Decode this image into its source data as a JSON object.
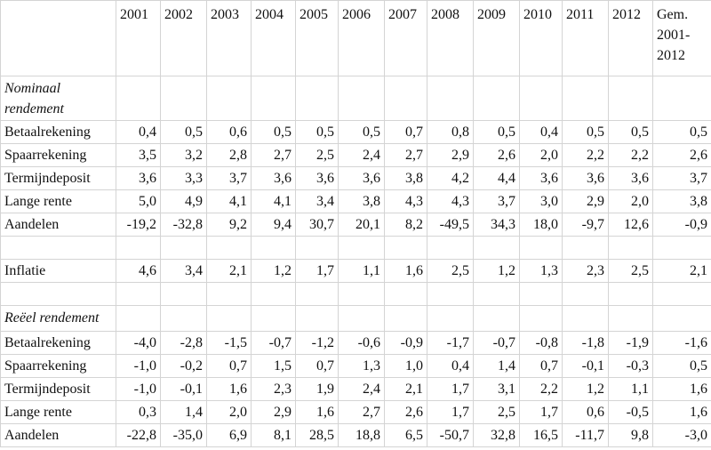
{
  "table": {
    "columns": [
      "2001",
      "2002",
      "2003",
      "2004",
      "2005",
      "2006",
      "2007",
      "2008",
      "2009",
      "2010",
      "2011",
      "2012",
      "Gem. 2001-2012"
    ],
    "sections": [
      {
        "title": "Nominaal rendement",
        "rows": [
          {
            "label": "Betaalrekening",
            "cells": [
              "0,4",
              "0,5",
              "0,6",
              "0,5",
              "0,5",
              "0,5",
              "0,7",
              "0,8",
              "0,5",
              "0,4",
              "0,5",
              "0,5",
              "0,5"
            ]
          },
          {
            "label": "Spaarrekening",
            "cells": [
              "3,5",
              "3,2",
              "2,8",
              "2,7",
              "2,5",
              "2,4",
              "2,7",
              "2,9",
              "2,6",
              "2,0",
              "2,2",
              "2,2",
              "2,6"
            ]
          },
          {
            "label": "Termijndeposit",
            "cells": [
              "3,6",
              "3,3",
              "3,7",
              "3,6",
              "3,6",
              "3,6",
              "3,8",
              "4,2",
              "4,4",
              "3,6",
              "3,6",
              "3,6",
              "3,7"
            ]
          },
          {
            "label": "Lange rente",
            "cells": [
              "5,0",
              "4,9",
              "4,1",
              "4,1",
              "3,4",
              "3,8",
              "4,3",
              "4,3",
              "3,7",
              "3,0",
              "2,9",
              "2,0",
              "3,8"
            ]
          },
          {
            "label": "Aandelen",
            "cells": [
              "-19,2",
              "-32,8",
              "9,2",
              "9,4",
              "30,7",
              "20,1",
              "8,2",
              "-49,5",
              "34,3",
              "18,0",
              "-9,7",
              "12,6",
              "-0,9"
            ]
          }
        ]
      },
      {
        "rows": [
          {
            "label": "Inflatie",
            "cells": [
              "4,6",
              "3,4",
              "2,1",
              "1,2",
              "1,7",
              "1,1",
              "1,6",
              "2,5",
              "1,2",
              "1,3",
              "2,3",
              "2,5",
              "2,1"
            ]
          }
        ]
      },
      {
        "title": "Reëel rendement",
        "rows": [
          {
            "label": "Betaalrekening",
            "cells": [
              "-4,0",
              "-2,8",
              "-1,5",
              "-0,7",
              "-1,2",
              "-0,6",
              "-0,9",
              "-1,7",
              "-0,7",
              "-0,8",
              "-1,8",
              "-1,9",
              "-1,6"
            ]
          },
          {
            "label": "Spaarrekening",
            "cells": [
              "-1,0",
              "-0,2",
              "0,7",
              "1,5",
              "0,7",
              "1,3",
              "1,0",
              "0,4",
              "1,4",
              "0,7",
              "-0,1",
              "-0,3",
              "0,5"
            ]
          },
          {
            "label": "Termijndeposit",
            "cells": [
              "-1,0",
              "-0,1",
              "1,6",
              "2,3",
              "1,9",
              "2,4",
              "2,1",
              "1,7",
              "3,1",
              "2,2",
              "1,2",
              "1,1",
              "1,6"
            ]
          },
          {
            "label": "Lange rente",
            "cells": [
              "0,3",
              "1,4",
              "2,0",
              "2,9",
              "1,6",
              "2,7",
              "2,6",
              "1,7",
              "2,5",
              "1,7",
              "0,6",
              "-0,5",
              "1,6"
            ]
          },
          {
            "label": "Aandelen",
            "cells": [
              "-22,8",
              "-35,0",
              "6,9",
              "8,1",
              "28,5",
              "18,8",
              "6,5",
              "-50,7",
              "32,8",
              "16,5",
              "-11,7",
              "9,8",
              "-3,0"
            ]
          }
        ]
      }
    ]
  }
}
